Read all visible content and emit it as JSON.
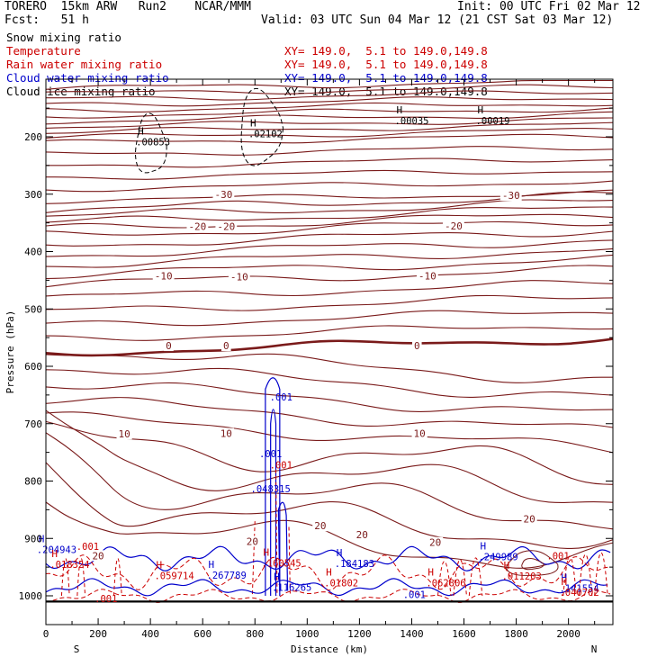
{
  "header": {
    "model": "TORERO  15km ARW   Run2    NCAR/MMM",
    "init": "Init: 00 UTC Fri 02 Mar 12",
    "fcst": "Fcst:   51 h",
    "valid": "Valid: 03 UTC Sun 04 Mar 12 (21 CST Sat 03 Mar 12)"
  },
  "fields": [
    {
      "name": "Snow mixing ratio",
      "xy": "",
      "color": "#000000"
    },
    {
      "name": "Temperature",
      "xy": "XY= 149.0,  5.1 to 149.0,149.8",
      "color": "#cc0000"
    },
    {
      "name": "Rain water mixing ratio",
      "xy": "XY= 149.0,  5.1 to 149.0,149.8",
      "color": "#cc0000"
    },
    {
      "name": "Cloud water mixing ratio",
      "xy": "XY= 149.0,  5.1 to 149.0,149.8",
      "color": "#0000cc"
    },
    {
      "name": "Cloud ice mixing ratio",
      "xy": "XY= 149.0,  5.1 to 149.0,149.8",
      "color": "#000000"
    }
  ],
  "colors": {
    "temperature": "#7a1a1a",
    "zero_isotherm": "#7a1a1a",
    "rain": "#cc0000",
    "cloud_water": "#0000cc",
    "snow": "#000000",
    "ice": "#000000"
  },
  "chart_data": {
    "type": "contour-cross-section",
    "xlabel": "Distance (km)",
    "ylabel": "Pressure (hPa)",
    "xlim": [
      0,
      2170
    ],
    "ylim": [
      1050,
      100
    ],
    "x_ticks": [
      0,
      200,
      400,
      600,
      800,
      1000,
      1200,
      1400,
      1600,
      1800,
      2000
    ],
    "y_ticks": [
      200,
      300,
      400,
      500,
      600,
      700,
      800,
      900,
      1000
    ],
    "x_end_labels": {
      "left": "S",
      "right": "N"
    },
    "temperature_levels": [
      -60,
      -58,
      -56,
      -54,
      -52,
      -50,
      -48,
      -46,
      -44,
      -42,
      -40,
      -38,
      -36,
      -34,
      -32,
      -30,
      -28,
      -26,
      -24,
      -22,
      -20,
      -18,
      -16,
      -14,
      -12,
      -10,
      -8,
      -6,
      -4,
      -2,
      0,
      2,
      4,
      6,
      8,
      10,
      12,
      14,
      16,
      18,
      20
    ],
    "temperature_labels": [
      {
        "x": 680,
        "p": 300,
        "text": "-30"
      },
      {
        "x": 1780,
        "p": 302,
        "text": "-30"
      },
      {
        "x": 580,
        "p": 356,
        "text": "-20"
      },
      {
        "x": 690,
        "p": 356,
        "text": "-20"
      },
      {
        "x": 1560,
        "p": 355,
        "text": "-20"
      },
      {
        "x": 450,
        "p": 442,
        "text": "-10"
      },
      {
        "x": 740,
        "p": 444,
        "text": "-10"
      },
      {
        "x": 1460,
        "p": 442,
        "text": "-10"
      },
      {
        "x": 470,
        "p": 564,
        "text": "0"
      },
      {
        "x": 690,
        "p": 564,
        "text": "0"
      },
      {
        "x": 1420,
        "p": 564,
        "text": "0"
      },
      {
        "x": 300,
        "p": 718,
        "text": "10"
      },
      {
        "x": 690,
        "p": 717,
        "text": "10"
      },
      {
        "x": 1430,
        "p": 717,
        "text": "10"
      },
      {
        "x": 1850,
        "p": 866,
        "text": "20"
      },
      {
        "x": 1210,
        "p": 893,
        "text": "20"
      },
      {
        "x": 1490,
        "p": 907,
        "text": "20"
      },
      {
        "x": 790,
        "p": 905,
        "text": "20"
      },
      {
        "x": 200,
        "p": 930,
        "text": "20"
      },
      {
        "x": 1050,
        "p": 878,
        "text": "20"
      }
    ],
    "maxima": [
      {
        "x": 400,
        "p": 212,
        "text": "00853",
        "field": "snow"
      },
      {
        "x": 830,
        "p": 198,
        "text": "02102",
        "field": "snow"
      },
      {
        "x": 1390,
        "p": 175,
        "text": "00035",
        "field": "ice"
      },
      {
        "x": 1700,
        "p": 175,
        "text": "00019",
        "field": "ice"
      },
      {
        "x": 20,
        "p": 922,
        "text": "204943",
        "field": "cloud_water"
      },
      {
        "x": 70,
        "p": 948,
        "text": "018324",
        "field": "rain"
      },
      {
        "x": 470,
        "p": 968,
        "text": "059714",
        "field": "rain"
      },
      {
        "x": 670,
        "p": 967,
        "text": "267789",
        "field": "cloud_water"
      },
      {
        "x": 880,
        "p": 946,
        "text": "160545",
        "field": "rain"
      },
      {
        "x": 1160,
        "p": 947,
        "text": "184183",
        "field": "cloud_water"
      },
      {
        "x": 920,
        "p": 988,
        "text": "116265",
        "field": "cloud_water"
      },
      {
        "x": 1120,
        "p": 980,
        "text": "01802",
        "field": "rain"
      },
      {
        "x": 1510,
        "p": 980,
        "text": "062806",
        "field": "rain"
      },
      {
        "x": 1710,
        "p": 935,
        "text": "249989",
        "field": "cloud_water"
      },
      {
        "x": 1800,
        "p": 969,
        "text": "011203",
        "field": "rain"
      },
      {
        "x": 2020,
        "p": 990,
        "text": "141554",
        "field": "cloud_water"
      },
      {
        "x": 2020,
        "p": 997,
        "text": "040702",
        "field": "rain"
      }
    ],
    "value_labels": [
      {
        "x": 900,
        "p": 653,
        "text": ".001",
        "field": "cloud_water"
      },
      {
        "x": 860,
        "p": 752,
        "text": ".001",
        "field": "cloud_water"
      },
      {
        "x": 900,
        "p": 772,
        "text": ".001",
        "field": "rain"
      },
      {
        "x": 860,
        "p": 813,
        "text": ".048315",
        "field": "cloud_water"
      },
      {
        "x": 160,
        "p": 914,
        "text": ".001",
        "field": "rain"
      },
      {
        "x": 230,
        "p": 1005,
        "text": ".001",
        "field": "rain"
      },
      {
        "x": 1410,
        "p": 998,
        "text": ".001",
        "field": "cloud_water"
      },
      {
        "x": 1960,
        "p": 930,
        "text": ".001",
        "field": "rain"
      }
    ]
  }
}
